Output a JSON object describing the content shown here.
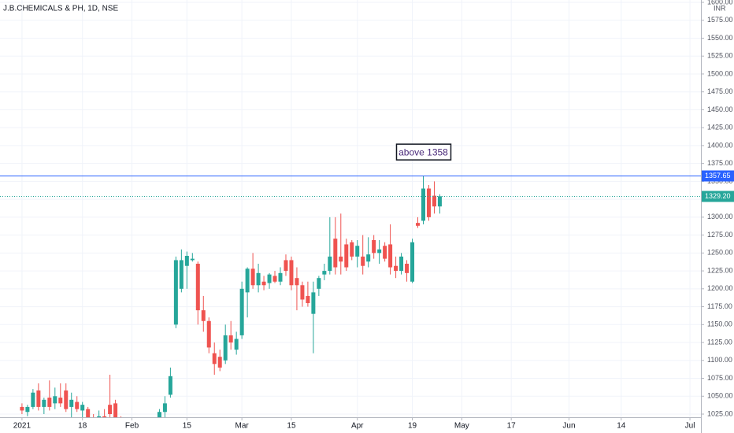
{
  "chart_data": {
    "type": "candlestick",
    "title": "J.B.CHEMICALS & PH, 1D, NSE",
    "currency": "INR",
    "up_color": "#26a69a",
    "down_color": "#ef5350",
    "grid": true,
    "x": [
      0,
      1,
      2,
      3,
      4,
      5,
      6,
      7,
      8,
      9,
      10,
      11,
      12,
      13,
      14,
      15,
      16,
      17,
      18,
      19,
      20,
      21,
      22,
      23,
      24,
      25,
      26,
      27,
      28,
      29,
      30,
      31,
      32,
      33,
      34,
      35,
      36,
      37,
      38,
      39,
      40,
      41,
      42,
      43,
      44,
      45,
      46,
      47,
      48,
      49,
      50,
      51,
      52,
      53,
      54,
      55,
      56,
      57,
      58,
      59,
      60,
      61,
      62,
      63,
      64,
      65,
      66,
      67,
      68,
      69,
      70,
      71,
      72,
      73,
      74,
      75,
      76
    ],
    "open": [
      1035,
      1028,
      1035,
      1058,
      1035,
      1048,
      1040,
      1048,
      1058,
      1035,
      1042,
      1030,
      1032,
      1018,
      1012,
      1022,
      1038,
      1040,
      1018,
      1005,
      995,
      1000,
      998,
      1008,
      1004,
      1016,
      1028,
      1052,
      1150,
      1200,
      1232,
      1240,
      1235,
      1170,
      1155,
      1110,
      1105,
      1100,
      1135,
      1115,
      1135,
      1195,
      1228,
      1205,
      1210,
      1208,
      1218,
      1210,
      1240,
      1240,
      1215,
      1205,
      1190,
      1165,
      1200,
      1220,
      1225,
      1270,
      1245,
      1262,
      1265,
      1245,
      1245,
      1238,
      1268,
      1250,
      1260,
      1262,
      1232,
      1225,
      1235,
      1210,
      1292,
      1295,
      1340,
      1330,
      1315
    ],
    "high": [
      1040,
      1038,
      1060,
      1068,
      1048,
      1072,
      1062,
      1068,
      1068,
      1055,
      1050,
      1042,
      1035,
      1025,
      1030,
      1032,
      1080,
      1045,
      1022,
      1012,
      1005,
      1010,
      1015,
      1018,
      1020,
      1032,
      1050,
      1090,
      1245,
      1255,
      1252,
      1250,
      1238,
      1190,
      1160,
      1125,
      1115,
      1150,
      1155,
      1140,
      1210,
      1230,
      1250,
      1235,
      1218,
      1222,
      1225,
      1230,
      1248,
      1245,
      1230,
      1210,
      1210,
      1210,
      1218,
      1235,
      1300,
      1300,
      1305,
      1270,
      1268,
      1268,
      1275,
      1272,
      1275,
      1268,
      1265,
      1290,
      1245,
      1250,
      1240,
      1270,
      1300,
      1358,
      1345,
      1350,
      1332
    ],
    "low": [
      1025,
      1022,
      1032,
      1030,
      1025,
      1030,
      1032,
      1035,
      1028,
      1020,
      1028,
      1020,
      1010,
      1005,
      1005,
      1012,
      1020,
      1015,
      1000,
      990,
      985,
      992,
      994,
      1000,
      1000,
      1010,
      1020,
      1048,
      1145,
      1195,
      1200,
      1238,
      1150,
      1140,
      1110,
      1080,
      1085,
      1095,
      1115,
      1108,
      1130,
      1160,
      1200,
      1195,
      1198,
      1200,
      1208,
      1205,
      1218,
      1198,
      1170,
      1175,
      1175,
      1110,
      1190,
      1212,
      1220,
      1220,
      1220,
      1225,
      1240,
      1230,
      1220,
      1230,
      1242,
      1235,
      1238,
      1220,
      1215,
      1220,
      1210,
      1208,
      1285,
      1290,
      1295,
      1305,
      1305
    ],
    "close": [
      1030,
      1035,
      1055,
      1035,
      1045,
      1035,
      1050,
      1040,
      1032,
      1045,
      1032,
      1038,
      1018,
      1010,
      1022,
      1018,
      1025,
      1020,
      1005,
      995,
      1000,
      998,
      1010,
      1004,
      1016,
      1028,
      1040,
      1078,
      1240,
      1240,
      1246,
      1242,
      1170,
      1155,
      1118,
      1095,
      1090,
      1135,
      1125,
      1130,
      1200,
      1228,
      1205,
      1222,
      1205,
      1220,
      1210,
      1222,
      1225,
      1205,
      1205,
      1185,
      1180,
      1195,
      1215,
      1225,
      1245,
      1230,
      1238,
      1230,
      1245,
      1260,
      1232,
      1248,
      1250,
      1255,
      1242,
      1230,
      1225,
      1245,
      1222,
      1265,
      1288,
      1340,
      1300,
      1315,
      1329.2
    ],
    "xlim": [
      -4,
      123.5
    ],
    "xticks": [
      {
        "value": 0,
        "label": "2021"
      },
      {
        "value": 11,
        "label": "18"
      },
      {
        "value": 20,
        "label": "Feb"
      },
      {
        "value": 30,
        "label": "15"
      },
      {
        "value": 40,
        "label": "Mar"
      },
      {
        "value": 49,
        "label": "15"
      },
      {
        "value": 61,
        "label": "Apr"
      },
      {
        "value": 71,
        "label": "19"
      },
      {
        "value": 80,
        "label": "May"
      },
      {
        "value": 89,
        "label": "17"
      },
      {
        "value": 99.5,
        "label": "Jun"
      },
      {
        "value": 109,
        "label": "14"
      },
      {
        "value": 121.5,
        "label": "Jul"
      }
    ],
    "ylim": [
      1020.6,
      1603.3
    ],
    "yticks": [
      {
        "value": 1025,
        "label": "1025.00"
      },
      {
        "value": 1050,
        "label": "1050.00"
      },
      {
        "value": 1075,
        "label": "1075.00"
      },
      {
        "value": 1100,
        "label": "1100.00"
      },
      {
        "value": 1125,
        "label": "1125.00"
      },
      {
        "value": 1150,
        "label": "1150.00"
      },
      {
        "value": 1175,
        "label": "1175.00"
      },
      {
        "value": 1200,
        "label": "1200.00"
      },
      {
        "value": 1225,
        "label": "1225.00"
      },
      {
        "value": 1250,
        "label": "1250.00"
      },
      {
        "value": 1275,
        "label": "1275.00"
      },
      {
        "value": 1300,
        "label": "1300.00"
      },
      {
        "value": 1325,
        "label": "1325.00"
      },
      {
        "value": 1350,
        "label": "1350.00"
      },
      {
        "value": 1375,
        "label": "1375.00"
      },
      {
        "value": 1400,
        "label": "1400.00"
      },
      {
        "value": 1425,
        "label": "1425.00"
      },
      {
        "value": 1450,
        "label": "1450.00"
      },
      {
        "value": 1475,
        "label": "1475.00"
      },
      {
        "value": 1500,
        "label": "1500.00"
      },
      {
        "value": 1525,
        "label": "1525.00"
      },
      {
        "value": 1550,
        "label": "1550.00"
      },
      {
        "value": 1575,
        "label": "1575.00"
      },
      {
        "value": 1600,
        "label": "1600.00"
      }
    ],
    "price_lines": [
      {
        "value": 1357.65,
        "label": "1357.65",
        "color": "#2962ff",
        "style": "solid"
      },
      {
        "value": 1329.2,
        "label": "1329.20",
        "color": "#26a69a",
        "style": "dotted"
      }
    ],
    "annotation": {
      "text": "above 1358",
      "value": 1358,
      "x": 73
    }
  }
}
